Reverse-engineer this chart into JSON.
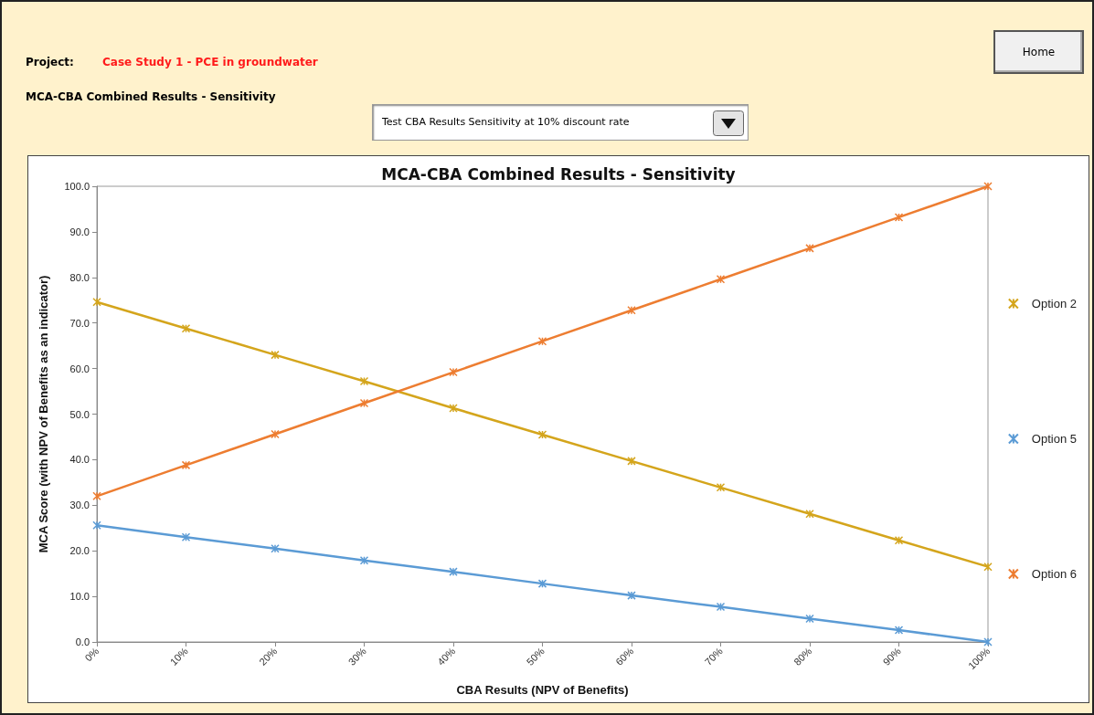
{
  "chart_data": {
    "type": "line",
    "title": "MCA-CBA Combined Results - Sensitivity",
    "xlabel": "CBA Results (NPV of Benefits)",
    "ylabel": "MCA Score (with NPV of Benefits as an indicator)",
    "categories": [
      "0%",
      "10%",
      "20%",
      "30%",
      "40%",
      "50%",
      "60%",
      "70%",
      "80%",
      "90%",
      "100%"
    ],
    "series": [
      {
        "name": "Option 2",
        "color": "#d4a51c",
        "values": [
          74.6,
          68.8,
          63.0,
          57.2,
          51.3,
          45.5,
          39.7,
          33.9,
          28.1,
          22.3,
          16.5
        ]
      },
      {
        "name": "Option 5",
        "color": "#5b9bd5",
        "values": [
          25.6,
          23.0,
          20.5,
          17.9,
          15.4,
          12.8,
          10.2,
          7.7,
          5.1,
          2.6,
          0.0
        ]
      },
      {
        "name": "Option 6",
        "color": "#ed7d31",
        "values": [
          32.0,
          38.8,
          45.6,
          52.4,
          59.2,
          66.0,
          72.8,
          79.6,
          86.4,
          93.2,
          100.0
        ]
      }
    ],
    "ylim": [
      0,
      100
    ],
    "yticks": [
      {
        "value": 0,
        "label": "0.0"
      },
      {
        "value": 10,
        "label": "10.0"
      },
      {
        "value": 20,
        "label": "20.0"
      },
      {
        "value": 30,
        "label": "30.0"
      },
      {
        "value": 40,
        "label": "40.0"
      },
      {
        "value": 50,
        "label": "50.0"
      },
      {
        "value": 60,
        "label": "60.0"
      },
      {
        "value": 70,
        "label": "70.0"
      },
      {
        "value": 80,
        "label": "80.0"
      },
      {
        "value": 90,
        "label": "90.0"
      },
      {
        "value": 100,
        "label": "100.0"
      }
    ],
    "legend": "right",
    "marker": "cross",
    "line_style": "solid",
    "annotations": [
      "Project:",
      "Case Study 1 - PCE in groundwater",
      "MCA-CBA Combined Results - Sensitivity",
      "Test CBA Results Sensitivity at 10% discount rate",
      "Home"
    ]
  }
}
